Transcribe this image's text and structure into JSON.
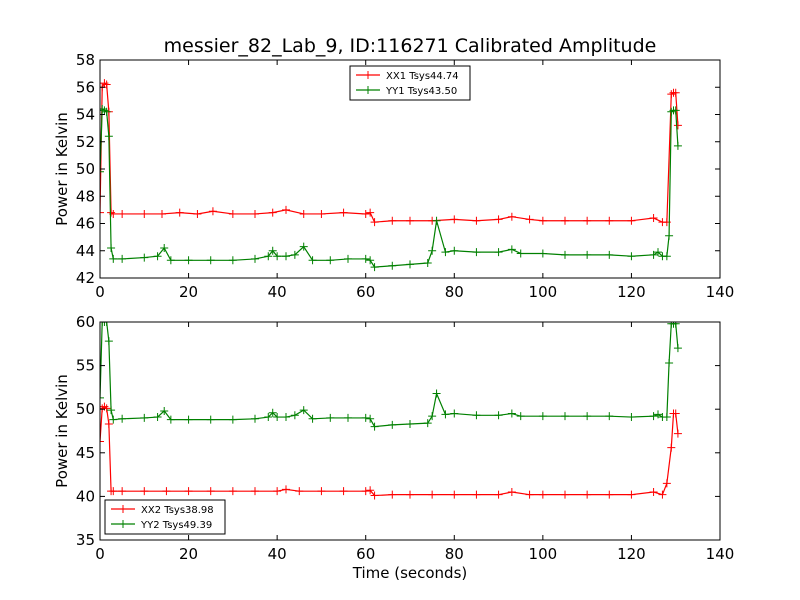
{
  "figure": {
    "title": "messier_82_Lab_9, ID:116271 Calibrated Amplitude"
  },
  "chart_data": [
    {
      "type": "line",
      "title": "messier_82_Lab_9, ID:116271 Calibrated Amplitude",
      "xlabel": "",
      "ylabel": "Power in Kelvin",
      "xlim": [
        0,
        140
      ],
      "ylim": [
        42,
        58
      ],
      "xticks": [
        "0",
        "20",
        "40",
        "60",
        "80",
        "100",
        "120",
        "140"
      ],
      "yticks": [
        "42",
        "44",
        "46",
        "48",
        "50",
        "52",
        "54",
        "56",
        "58"
      ],
      "grid": false,
      "legend_position": "top-center",
      "marker": "plus",
      "series": [
        {
          "name": "XX1 Tsys44.74",
          "color": "#ff0000",
          "x": [
            0,
            0.5,
            1,
            1.5,
            2,
            2.5,
            3,
            5,
            10,
            14,
            18,
            22,
            25.5,
            30,
            35,
            39,
            42,
            46,
            50,
            55,
            60,
            61,
            62,
            66,
            70,
            75,
            80,
            85,
            90,
            93,
            97,
            100,
            105,
            110,
            115,
            120,
            125,
            127,
            128,
            129,
            129.5,
            130,
            130.5
          ],
          "values": [
            46.8,
            56.0,
            56.3,
            56.2,
            54.2,
            46.8,
            46.7,
            46.7,
            46.7,
            46.7,
            46.8,
            46.7,
            46.9,
            46.7,
            46.7,
            46.8,
            47.0,
            46.7,
            46.7,
            46.8,
            46.7,
            46.8,
            46.1,
            46.2,
            46.2,
            46.2,
            46.3,
            46.2,
            46.3,
            46.5,
            46.3,
            46.2,
            46.2,
            46.2,
            46.2,
            46.2,
            46.4,
            46.1,
            46.1,
            55.5,
            55.6,
            55.6,
            53.2
          ]
        },
        {
          "name": "YY1 Tsys43.50",
          "color": "#008000",
          "x": [
            0,
            0.5,
            1,
            1.5,
            2,
            2.5,
            3,
            5,
            10,
            13,
            14.5,
            16,
            20,
            25,
            30,
            35,
            38,
            39,
            40,
            42,
            44,
            46,
            48,
            52,
            56,
            60,
            61,
            62,
            66,
            70,
            74,
            75,
            76,
            78,
            80,
            85,
            90,
            93,
            95,
            100,
            105,
            110,
            115,
            120,
            125,
            126,
            127,
            128,
            128.5,
            129,
            129.5,
            130,
            130.5
          ],
          "values": [
            49.8,
            54.4,
            54.3,
            54.2,
            52.4,
            44.2,
            43.4,
            43.4,
            43.5,
            43.6,
            44.2,
            43.3,
            43.3,
            43.3,
            43.3,
            43.4,
            43.6,
            44.0,
            43.6,
            43.6,
            43.7,
            44.3,
            43.3,
            43.3,
            43.4,
            43.4,
            43.3,
            42.8,
            42.9,
            43.0,
            43.1,
            44.0,
            46.2,
            43.9,
            44.0,
            43.9,
            43.9,
            44.1,
            43.8,
            43.8,
            43.7,
            43.7,
            43.7,
            43.6,
            43.7,
            43.9,
            43.6,
            43.6,
            45.1,
            54.2,
            54.3,
            54.3,
            51.7
          ]
        }
      ]
    },
    {
      "type": "line",
      "title": "",
      "xlabel": "Time (seconds)",
      "ylabel": "Power in Kelvin",
      "xlim": [
        0,
        140
      ],
      "ylim": [
        35,
        60
      ],
      "xticks": [
        "0",
        "20",
        "40",
        "60",
        "80",
        "100",
        "120",
        "140"
      ],
      "yticks": [
        "35",
        "40",
        "45",
        "50",
        "55",
        "60"
      ],
      "grid": false,
      "legend_position": "bottom-left",
      "marker": "plus",
      "series": [
        {
          "name": "XX2 Tsys38.98",
          "color": "#ff0000",
          "x": [
            0,
            0.5,
            1,
            1.5,
            2,
            2.5,
            3,
            5,
            10,
            15,
            20,
            25,
            30,
            35,
            40,
            42,
            45,
            50,
            55,
            60,
            61,
            62,
            66,
            70,
            75,
            80,
            85,
            90,
            93,
            97,
            100,
            105,
            110,
            115,
            120,
            125,
            127,
            128,
            129,
            129.5,
            130,
            130.5
          ],
          "values": [
            46.3,
            50.1,
            50.3,
            50.1,
            48.3,
            40.6,
            40.6,
            40.6,
            40.6,
            40.6,
            40.6,
            40.6,
            40.6,
            40.6,
            40.6,
            40.8,
            40.6,
            40.6,
            40.6,
            40.6,
            40.7,
            40.1,
            40.2,
            40.2,
            40.2,
            40.2,
            40.2,
            40.2,
            40.5,
            40.2,
            40.2,
            40.2,
            40.2,
            40.2,
            40.2,
            40.5,
            40.2,
            41.5,
            45.6,
            49.5,
            49.5,
            47.2
          ]
        },
        {
          "name": "YY2 Tsys49.39",
          "color": "#008000",
          "x": [
            0,
            0.5,
            1,
            1.5,
            2,
            2.5,
            3,
            5,
            10,
            13,
            14.5,
            16,
            20,
            25,
            30,
            35,
            38,
            39,
            40,
            42,
            44,
            46,
            48,
            52,
            56,
            60,
            61,
            62,
            66,
            70,
            74,
            75,
            76,
            78,
            80,
            85,
            90,
            93,
            95,
            100,
            105,
            110,
            115,
            120,
            125,
            126,
            127,
            128,
            128.5,
            129,
            129.5,
            130,
            130.5
          ],
          "values": [
            51.3,
            60.0,
            60.0,
            60.0,
            57.8,
            49.9,
            48.8,
            48.9,
            49.0,
            49.1,
            49.8,
            48.8,
            48.8,
            48.8,
            48.8,
            48.9,
            49.1,
            49.6,
            49.1,
            49.1,
            49.3,
            49.9,
            48.9,
            49.0,
            49.0,
            49.0,
            48.9,
            48.0,
            48.2,
            48.3,
            48.4,
            49.2,
            51.8,
            49.4,
            49.5,
            49.3,
            49.3,
            49.5,
            49.2,
            49.2,
            49.2,
            49.2,
            49.2,
            49.1,
            49.2,
            49.4,
            49.1,
            49.1,
            55.3,
            59.8,
            59.8,
            59.8,
            57.0
          ]
        }
      ]
    }
  ]
}
